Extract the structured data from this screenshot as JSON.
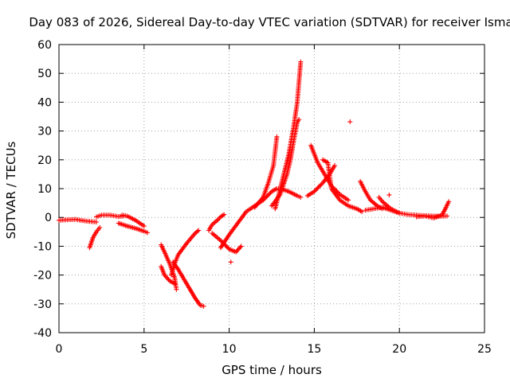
{
  "chart_data": {
    "type": "scatter",
    "title": "Day 083 of 2026, Sidereal Day-to-day VTEC variation (SDTVAR) for receiver Isma",
    "xlabel": "GPS time / hours",
    "ylabel": "SDTVAR / TECUs",
    "xlim": [
      0,
      25
    ],
    "ylim": [
      -40,
      60
    ],
    "xticks": [
      0,
      5,
      10,
      15,
      20,
      25
    ],
    "yticks": [
      -40,
      -30,
      -20,
      -10,
      0,
      10,
      20,
      30,
      40,
      50,
      60
    ],
    "grid": true,
    "marker": "+",
    "color": "#ff0000",
    "segments": [
      {
        "x": [
          0.0,
          0.5,
          1.0,
          1.5,
          2.0,
          2.2
        ],
        "y": [
          -1.0,
          -0.8,
          -0.7,
          -1.2,
          -1.5,
          -1.6
        ]
      },
      {
        "x": [
          1.8,
          2.0,
          2.2,
          2.4
        ],
        "y": [
          -10.5,
          -7,
          -5,
          -3.5
        ]
      },
      {
        "x": [
          2.2,
          2.5,
          3.0,
          3.5,
          3.8
        ],
        "y": [
          0.2,
          0.8,
          0.8,
          0.3,
          0.5
        ]
      },
      {
        "x": [
          3.5,
          4.0,
          4.5,
          5.0,
          5.2
        ],
        "y": [
          -2.0,
          -3.0,
          -3.8,
          -4.8,
          -5.3
        ]
      },
      {
        "x": [
          3.7,
          4.0,
          4.5,
          5.0
        ],
        "y": [
          0.8,
          0.5,
          -1.0,
          -3.0
        ]
      },
      {
        "x": [
          6.0,
          6.2,
          6.5,
          6.8,
          6.9
        ],
        "y": [
          -9.5,
          -12,
          -16,
          -21,
          -25
        ]
      },
      {
        "x": [
          6.0,
          6.2,
          6.5,
          6.8
        ],
        "y": [
          -17,
          -20,
          -22,
          -23
        ]
      },
      {
        "x": [
          6.7,
          7.0,
          7.5,
          8.0,
          8.3,
          8.5
        ],
        "y": [
          -15.5,
          -18,
          -23,
          -28,
          -30.5,
          -30.8
        ]
      },
      {
        "x": [
          6.6,
          6.8,
          7.0,
          7.5,
          8.0,
          8.2
        ],
        "y": [
          -20,
          -16,
          -13,
          -9,
          -5.5,
          -4.5
        ]
      },
      {
        "x": [
          8.8,
          9.0,
          9.3,
          9.5,
          9.7
        ],
        "y": [
          -4.5,
          -2.5,
          -1.0,
          0.2,
          1.0
        ]
      },
      {
        "x": [
          9.0,
          9.5,
          10.0,
          10.4,
          10.7
        ],
        "y": [
          -5.5,
          -8,
          -11,
          -12,
          -10
        ]
      },
      {
        "x": [
          9.5,
          10.0,
          10.5,
          11.0,
          11.5
        ],
        "y": [
          -10.5,
          -6,
          -2,
          2,
          4
        ]
      },
      {
        "x": [
          11.5,
          12.0,
          12.5,
          12.8,
          13.0,
          13.5,
          14.0,
          14.2
        ],
        "y": [
          4,
          6,
          9,
          10,
          10,
          9,
          7.5,
          7
        ]
      },
      {
        "x": [
          11.5,
          12.0,
          12.3,
          12.6,
          12.8
        ],
        "y": [
          3.5,
          7,
          12,
          18,
          28
        ]
      },
      {
        "x": [
          12.5,
          13.0,
          13.4,
          13.6,
          13.8,
          14.0,
          14.1
        ],
        "y": [
          4,
          8,
          15,
          20,
          27,
          33,
          34
        ]
      },
      {
        "x": [
          12.7,
          13.0,
          13.5,
          13.8,
          14.0,
          14.2
        ],
        "y": [
          3,
          10,
          22,
          32,
          40,
          54
        ]
      },
      {
        "x": [
          14.6,
          15.0,
          15.5,
          15.9,
          16.2
        ],
        "y": [
          7.5,
          9,
          12,
          15,
          18
        ]
      },
      {
        "x": [
          14.8,
          15.2,
          15.6,
          16.0,
          16.5,
          17.0
        ],
        "y": [
          25,
          19,
          15,
          11,
          8,
          6
        ]
      },
      {
        "x": [
          15.5,
          15.8,
          16.0,
          16.5,
          17.0,
          17.5,
          17.8
        ],
        "y": [
          20,
          19,
          10,
          6,
          4,
          3,
          2
        ]
      },
      {
        "x": [
          17.1
        ],
        "y": [
          33.2
        ]
      },
      {
        "x": [
          17.7,
          18.0,
          18.3,
          18.7,
          19.0
        ],
        "y": [
          12.5,
          9,
          6,
          4,
          3
        ]
      },
      {
        "x": [
          18.0,
          18.5,
          19.0,
          19.5,
          20.0,
          20.5,
          21.0,
          21.5,
          22.0,
          22.5,
          22.8
        ],
        "y": [
          2.5,
          3,
          3.5,
          2.5,
          1.5,
          1,
          0.8,
          0.6,
          0.5,
          0.4,
          0.5
        ]
      },
      {
        "x": [
          18.8,
          19.0,
          19.5,
          20.0
        ],
        "y": [
          7,
          5.5,
          3,
          1.5
        ]
      },
      {
        "x": [
          19.4
        ],
        "y": [
          7.8
        ]
      },
      {
        "x": [
          21.0,
          21.5,
          22.0,
          22.5,
          22.7,
          22.9
        ],
        "y": [
          0.2,
          0.5,
          -0.2,
          0.8,
          3,
          5.5
        ]
      },
      {
        "x": [
          10.1
        ],
        "y": [
          -15.5
        ]
      }
    ]
  }
}
